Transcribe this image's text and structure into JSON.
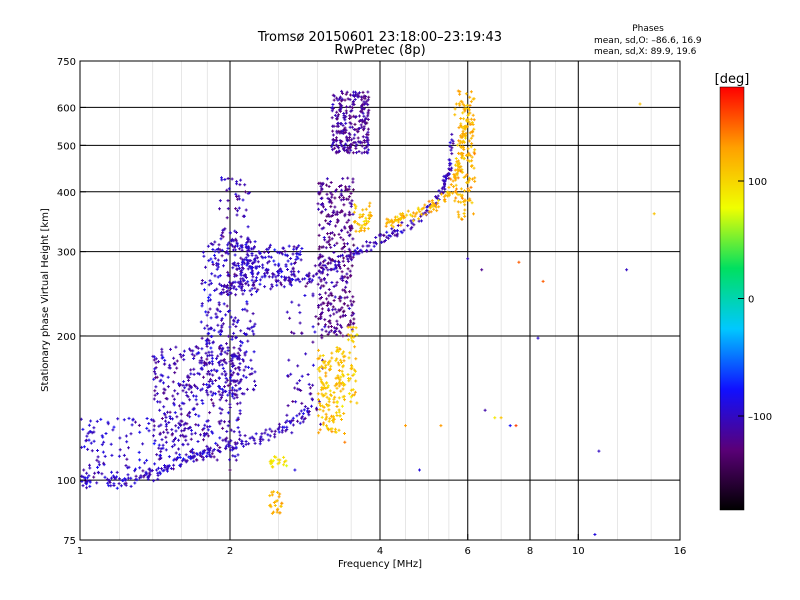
{
  "title": "Tromsø 20150601 23:18:00–23:19:43",
  "subtitle": "RwPretec (8p)",
  "phase_box": {
    "heading": "Phases",
    "line_o": "mean, sd,O: –86.6, 16.9",
    "line_x": "mean, sd,X:  89.9, 19.6"
  },
  "colorbar": {
    "label": "deg",
    "ticks": [
      "100",
      "0",
      "–100"
    ],
    "tick_values": [
      100,
      0,
      -100
    ],
    "range": [
      -180,
      180
    ],
    "colormap": "rainbow",
    "colors": [
      "#000000",
      "#5a0078",
      "#1010ff",
      "#00c8ff",
      "#00e060",
      "#f0ff00",
      "#ffa000",
      "#ff0000"
    ]
  },
  "chart_data": {
    "type": "scatter",
    "title": "Tromsø 20150601 23:18:00–23:19:43",
    "subtitle": "RwPretec (8p)",
    "xlabel": "Frequency [MHz]",
    "ylabel": "Stationary phase Virtual Height [km]",
    "xscale": "log",
    "yscale": "log",
    "xlim": [
      1,
      16
    ],
    "ylim": [
      75,
      750
    ],
    "xticks": [
      1,
      2,
      4,
      6,
      8,
      10,
      16
    ],
    "xtick_labels": [
      "1",
      "2",
      "4",
      "6",
      "8",
      "10",
      "16"
    ],
    "yticks": [
      75,
      100,
      200,
      300,
      400,
      500,
      600,
      750
    ],
    "ytick_labels": [
      "75",
      "100",
      "200",
      "300",
      "400",
      "500",
      "600",
      "750"
    ],
    "major_gridlines_x": [
      2,
      4,
      6,
      8,
      10
    ],
    "major_gridlines_y": [
      100,
      200,
      300,
      400,
      500,
      600
    ],
    "grid": true,
    "color_variable": "phase [deg]",
    "clusters": [
      {
        "fmin": 1.0,
        "fmax": 1.45,
        "hmin": 95,
        "hmax": 135,
        "phase": -95,
        "n": 120
      },
      {
        "fmin": 1.4,
        "fmax": 2.1,
        "hmin": 110,
        "hmax": 190,
        "phase": -105,
        "n": 420
      },
      {
        "fmin": 1.75,
        "fmax": 2.25,
        "hmin": 150,
        "hmax": 320,
        "phase": -100,
        "n": 300
      },
      {
        "fmin": 1.9,
        "fmax": 2.2,
        "hmin": 250,
        "hmax": 430,
        "phase": -110,
        "n": 90
      },
      {
        "fmin": 2.1,
        "fmax": 2.8,
        "hmin": 260,
        "hmax": 310,
        "phase": -100,
        "n": 150
      },
      {
        "fmin": 2.6,
        "fmax": 3.1,
        "hmin": 130,
        "hmax": 260,
        "phase": -110,
        "n": 60
      },
      {
        "fmin": 3.0,
        "fmax": 3.55,
        "hmin": 200,
        "hmax": 430,
        "phase": -120,
        "n": 330
      },
      {
        "fmin": 3.0,
        "fmax": 3.4,
        "hmin": 125,
        "hmax": 190,
        "phase": 110,
        "n": 160
      },
      {
        "fmin": 3.45,
        "fmax": 3.6,
        "hmin": 140,
        "hmax": 210,
        "phase": 105,
        "n": 40
      },
      {
        "fmin": 3.2,
        "fmax": 3.8,
        "hmin": 480,
        "hmax": 650,
        "phase": -115,
        "n": 260
      },
      {
        "fmin": 3.55,
        "fmax": 3.85,
        "hmin": 330,
        "hmax": 380,
        "phase": 110,
        "n": 40
      },
      {
        "fmin": 2.4,
        "fmax": 2.55,
        "hmin": 85,
        "hmax": 95,
        "phase": 120,
        "n": 25
      },
      {
        "fmin": 2.4,
        "fmax": 2.6,
        "hmin": 105,
        "hmax": 112,
        "phase": 90,
        "n": 20
      },
      {
        "fmin": 5.65,
        "fmax": 6.2,
        "hmin": 350,
        "hmax": 650,
        "phase": 120,
        "n": 150
      }
    ],
    "traces": [
      {
        "f": [
          1.0,
          1.2,
          1.45,
          1.7,
          2.0,
          2.3,
          2.6,
          2.9
        ],
        "h": [
          100,
          100,
          105,
          112,
          118,
          122,
          130,
          140
        ],
        "phase": -100,
        "n": 200
      },
      {
        "f": [
          1.9,
          2.3,
          2.8,
          3.2,
          3.6,
          4.0,
          4.4,
          4.8,
          5.1,
          5.35,
          5.5,
          5.6
        ],
        "h": [
          250,
          255,
          265,
          280,
          300,
          318,
          333,
          350,
          375,
          405,
          450,
          520
        ],
        "phase": -105,
        "n": 230
      },
      {
        "f": [
          4.1,
          4.4,
          4.8,
          5.2,
          5.5,
          5.7,
          5.85,
          5.95
        ],
        "h": [
          345,
          350,
          362,
          378,
          400,
          435,
          480,
          560
        ],
        "phase": 115,
        "n": 140
      }
    ],
    "isolated_points": [
      {
        "f": 4.5,
        "h": 130,
        "phase": 130
      },
      {
        "f": 4.8,
        "h": 105,
        "phase": -90
      },
      {
        "f": 5.3,
        "h": 130,
        "phase": 130
      },
      {
        "f": 6.5,
        "h": 140,
        "phase": -110
      },
      {
        "f": 6.8,
        "h": 135,
        "phase": 90
      },
      {
        "f": 7.0,
        "h": 135,
        "phase": 110
      },
      {
        "f": 7.3,
        "h": 130,
        "phase": -80
      },
      {
        "f": 7.5,
        "h": 130,
        "phase": 160
      },
      {
        "f": 8.3,
        "h": 198,
        "phase": -95
      },
      {
        "f": 8.5,
        "h": 260,
        "phase": 150
      },
      {
        "f": 6.0,
        "h": 290,
        "phase": -100
      },
      {
        "f": 6.4,
        "h": 275,
        "phase": -120
      },
      {
        "f": 7.6,
        "h": 285,
        "phase": 150
      },
      {
        "f": 11.0,
        "h": 115,
        "phase": -100
      },
      {
        "f": 10.8,
        "h": 77,
        "phase": -90
      },
      {
        "f": 12.5,
        "h": 275,
        "phase": -100
      },
      {
        "f": 14.2,
        "h": 360,
        "phase": 110
      },
      {
        "f": 13.3,
        "h": 610,
        "phase": 110
      },
      {
        "f": 2.7,
        "h": 105,
        "phase": -90
      },
      {
        "f": 3.4,
        "h": 120,
        "phase": 140
      },
      {
        "f": 2.0,
        "h": 105,
        "phase": -140
      },
      {
        "f": 1.8,
        "h": 210,
        "phase": -110
      }
    ]
  }
}
